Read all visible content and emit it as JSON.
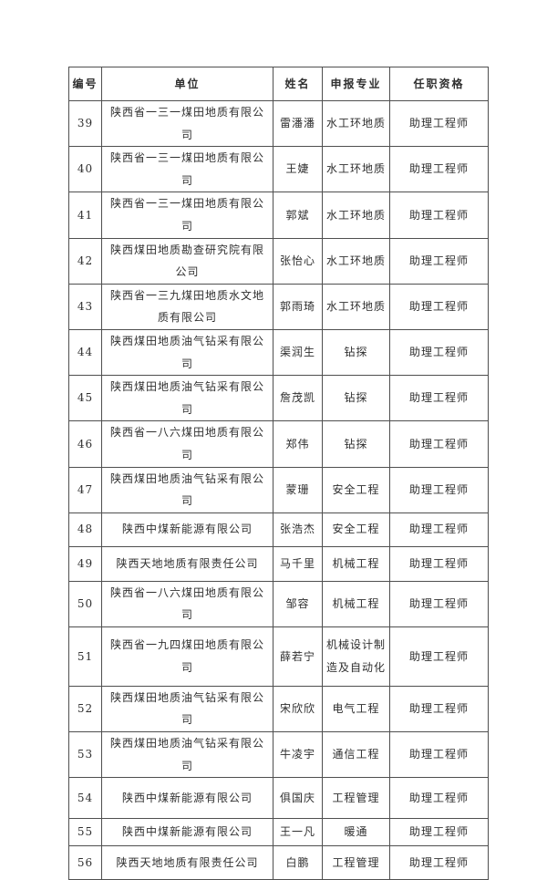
{
  "page": {
    "background": "#ffffff",
    "text_color": "#2f2f2f",
    "border_color": "#4f4f4f"
  },
  "table": {
    "columns": {
      "no": "编号",
      "unit": "单位",
      "name": "姓名",
      "major": "申报专业",
      "title": "任职资格"
    },
    "rows": [
      {
        "no": "39",
        "unit": "陕西省一三一煤田地质有限公司",
        "name": "雷潘潘",
        "major": "水工环地质",
        "title": "助理工程师"
      },
      {
        "no": "40",
        "unit": "陕西省一三一煤田地质有限公司",
        "name": "王婕",
        "major": "水工环地质",
        "title": "助理工程师"
      },
      {
        "no": "41",
        "unit": "陕西省一三一煤田地质有限公司",
        "name": "郭斌",
        "major": "水工环地质",
        "title": "助理工程师"
      },
      {
        "no": "42",
        "unit": "陕西煤田地质勘查研究院有限公司",
        "name": "张怡心",
        "major": "水工环地质",
        "title": "助理工程师"
      },
      {
        "no": "43",
        "unit": "陕西省一三九煤田地质水文地质有限公司",
        "name": "郭雨琦",
        "major": "水工环地质",
        "title": "助理工程师"
      },
      {
        "no": "44",
        "unit": "陕西煤田地质油气钻采有限公司",
        "name": "渠润生",
        "major": "钻探",
        "title": "助理工程师"
      },
      {
        "no": "45",
        "unit": "陕西煤田地质油气钻采有限公司",
        "name": "詹茂凯",
        "major": "钻探",
        "title": "助理工程师"
      },
      {
        "no": "46",
        "unit": "陕西省一八六煤田地质有限公司",
        "name": "郑伟",
        "major": "钻探",
        "title": "助理工程师"
      },
      {
        "no": "47",
        "unit": "陕西煤田地质油气钻采有限公司",
        "name": "蒙珊",
        "major": "安全工程",
        "title": "助理工程师"
      },
      {
        "no": "48",
        "unit": "陕西中煤新能源有限公司",
        "name": "张浩杰",
        "major": "安全工程",
        "title": "助理工程师"
      },
      {
        "no": "49",
        "unit": "陕西天地地质有限责任公司",
        "name": "马千里",
        "major": "机械工程",
        "title": "助理工程师"
      },
      {
        "no": "50",
        "unit": "陕西省一八六煤田地质有限公司",
        "name": "邹容",
        "major": "机械工程",
        "title": "助理工程师"
      },
      {
        "no": "51",
        "unit": "陕西省一九四煤田地质有限公司",
        "name": "薛若宁",
        "major": "机械设计制造及自动化",
        "title": "助理工程师"
      },
      {
        "no": "52",
        "unit": "陕西煤田地质油气钻采有限公司",
        "name": "宋欣欣",
        "major": "电气工程",
        "title": "助理工程师"
      },
      {
        "no": "53",
        "unit": "陕西煤田地质油气钻采有限公司",
        "name": "牛凌宇",
        "major": "通信工程",
        "title": "助理工程师"
      },
      {
        "no": "54",
        "unit": "陕西中煤新能源有限公司",
        "name": "俱国庆",
        "major": "工程管理",
        "title": "助理工程师"
      },
      {
        "no": "55",
        "unit": "陕西中煤新能源有限公司",
        "name": "王一凡",
        "major": "暖通",
        "title": "助理工程师"
      },
      {
        "no": "56",
        "unit": "陕西天地地质有限责任公司",
        "name": "白鹏",
        "major": "工程管理",
        "title": "助理工程师"
      }
    ]
  }
}
